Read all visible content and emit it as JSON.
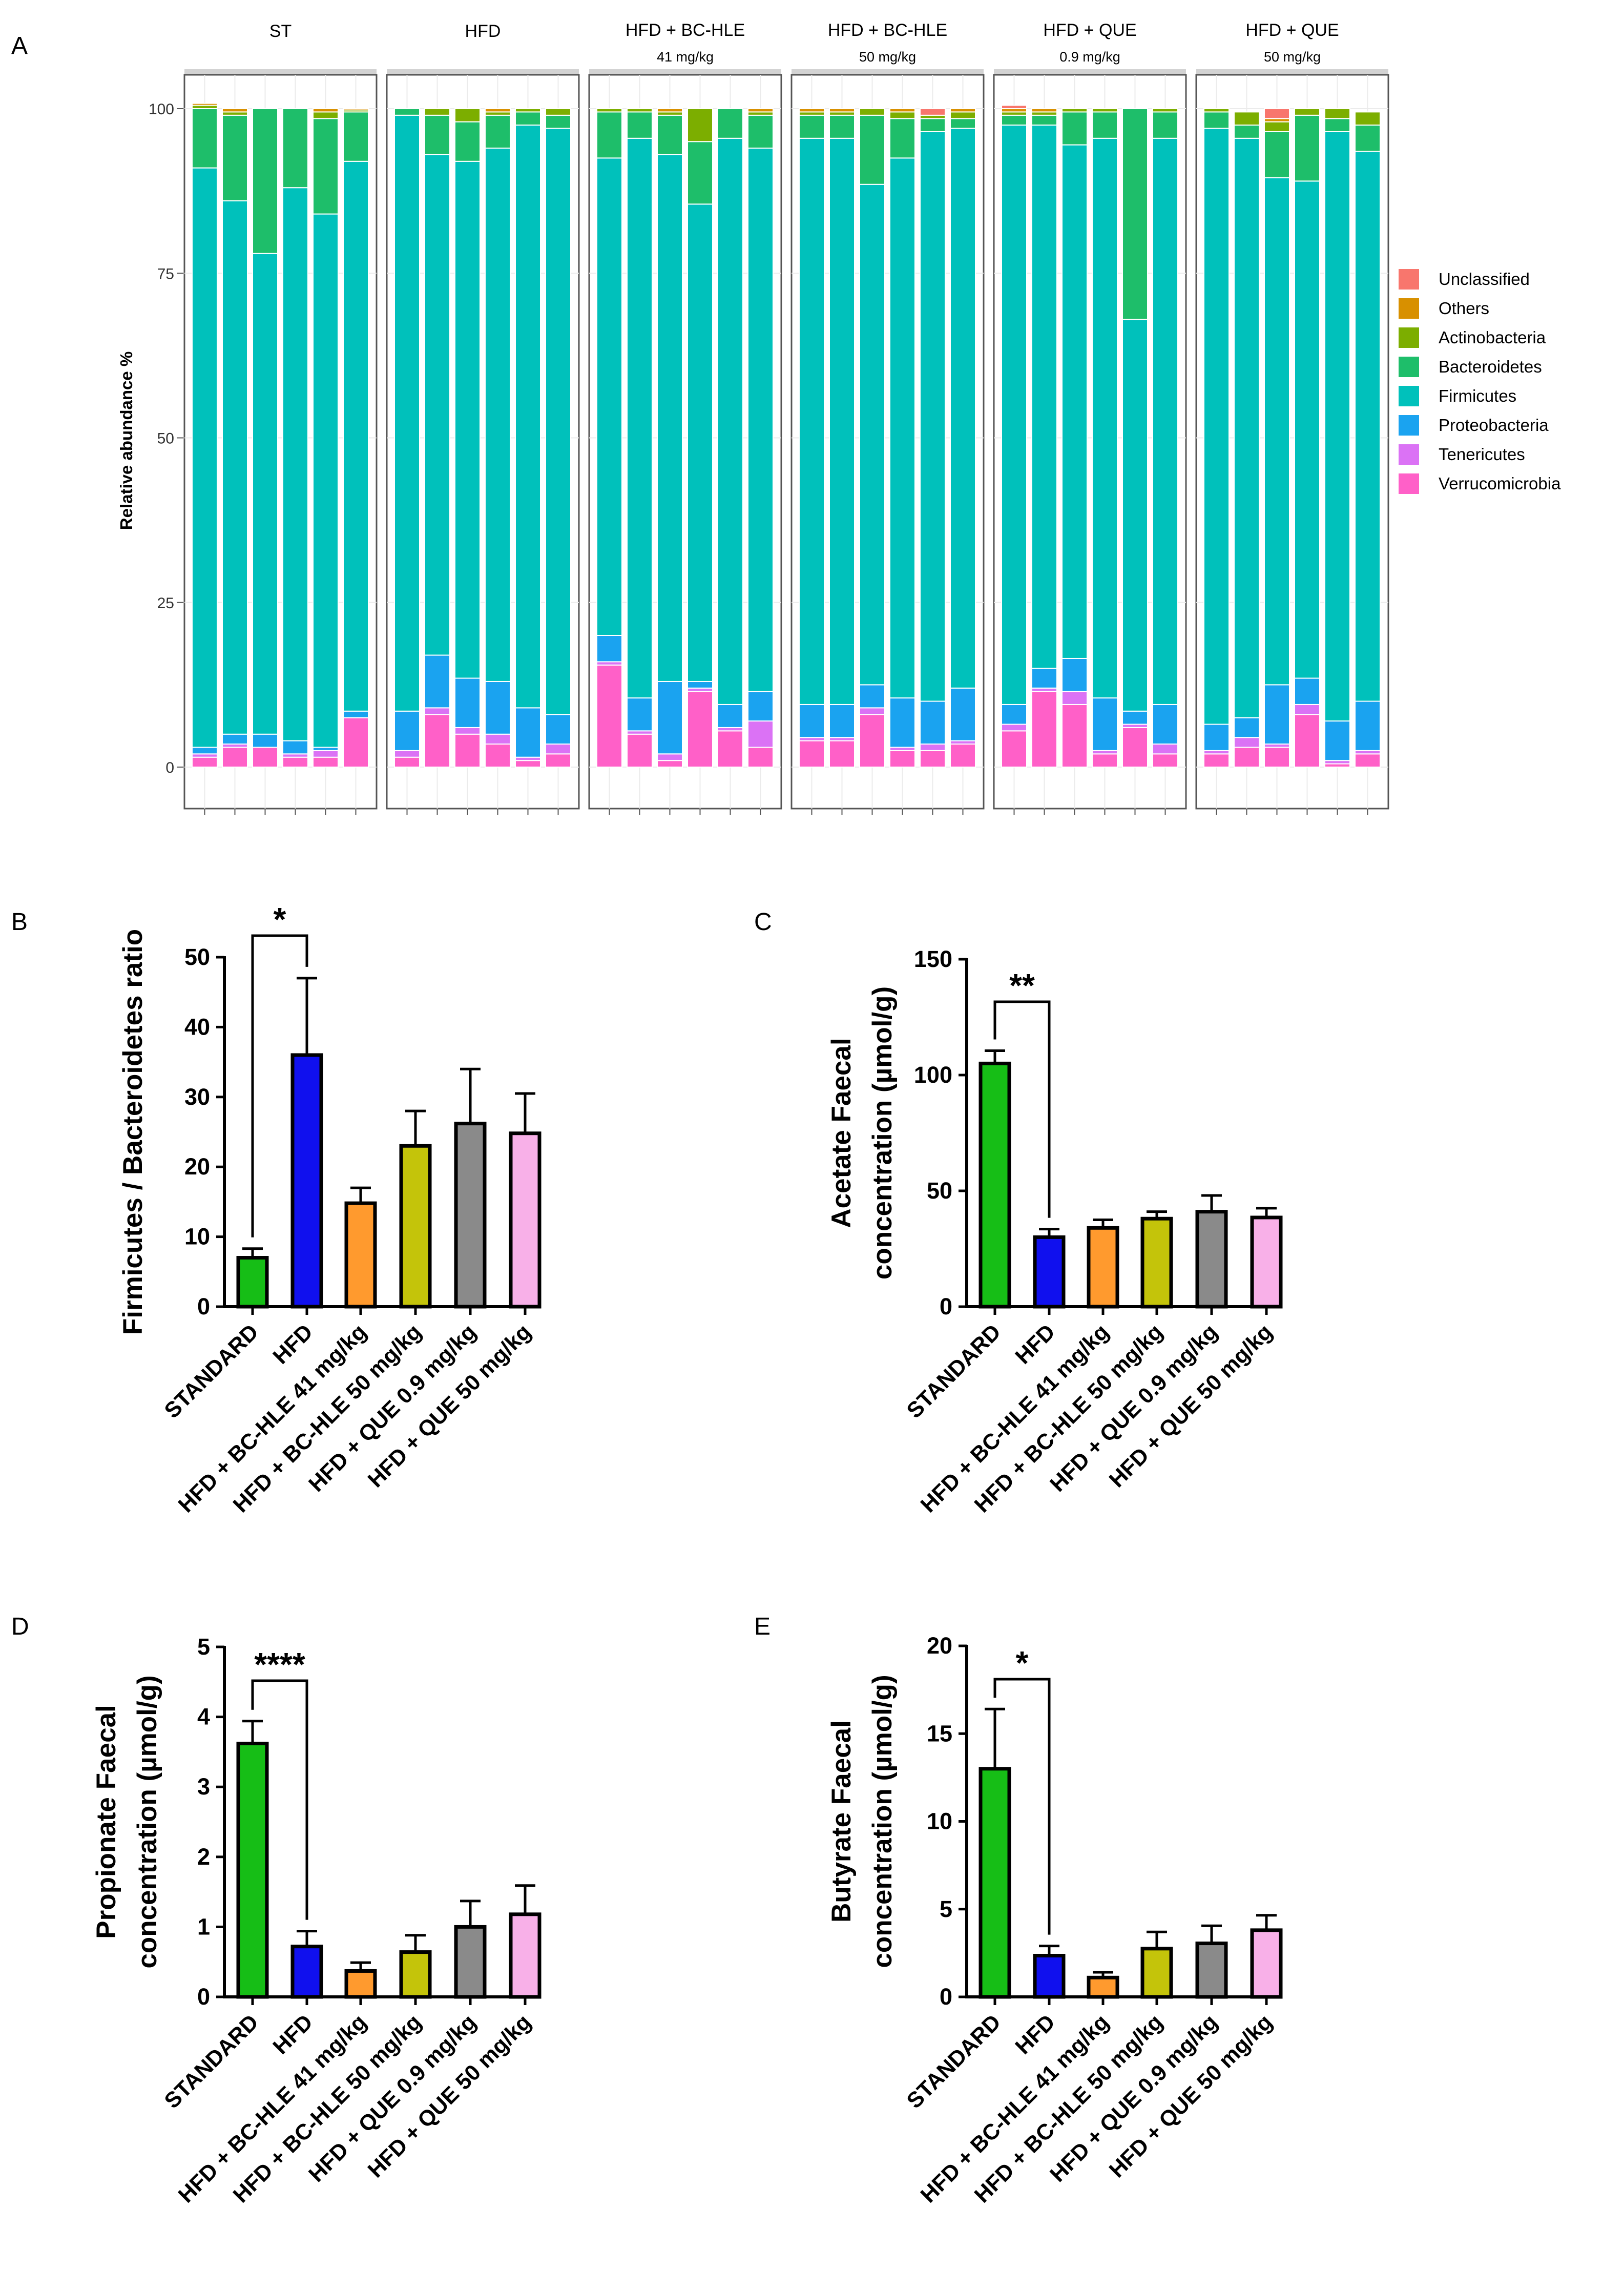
{
  "colors": {
    "Unclassified": "#F8766D",
    "Others": "#D89000",
    "Actinobacteria": "#7CAE00",
    "Bacteroidetes": "#1EBE6A",
    "Firmicutes": "#00C1BB",
    "Proteobacteria": "#1AA3F0",
    "Tenericutes": "#DB72F5",
    "Verrucomicrobia": "#FF60C8",
    "STANDARD": "#16BE16",
    "HFD": "#1010EE",
    "HFD + BC-HLE 41 mg/kg": "#FF9A2E",
    "HFD + BC-HLE 50 mg/kg": "#C4C40A",
    "HFD + QUE 0.9 mg/kg": "#8A8A8A",
    "HFD + QUE 50 mg/kg": "#F8B0E8"
  },
  "chart_data": [
    {
      "id": "A",
      "panel_label": "A",
      "type": "bar",
      "stacked": true,
      "ylabel": "Relative abundance %",
      "yticks": [
        0,
        25,
        50,
        75,
        100
      ],
      "ylim": [
        0,
        100
      ],
      "legend_position": "right",
      "phyla": [
        "Verrucomicrobia",
        "Tenericutes",
        "Proteobacteria",
        "Firmicutes",
        "Bacteroidetes",
        "Actinobacteria",
        "Others",
        "Unclassified"
      ],
      "legend_order": [
        "Unclassified",
        "Others",
        "Actinobacteria",
        "Bacteroidetes",
        "Firmicutes",
        "Proteobacteria",
        "Tenericutes",
        "Verrucomicrobia"
      ],
      "facets": [
        {
          "title": "ST",
          "subtitle": "",
          "samples": [
            [
              1.5,
              0.5,
              1,
              88,
              9,
              0.5,
              0.3,
              0
            ],
            [
              3,
              0.5,
              1.5,
              81,
              13,
              0.5,
              0.5,
              0
            ],
            [
              3,
              0,
              2,
              73,
              22,
              0,
              0,
              0
            ],
            [
              1.5,
              0.5,
              2,
              84,
              12,
              0,
              0,
              0
            ],
            [
              1.5,
              1,
              0.5,
              81,
              14.5,
              1,
              0.5,
              0
            ],
            [
              7.5,
              0,
              1,
              83.5,
              7.5,
              0.3,
              0.2,
              0
            ]
          ]
        },
        {
          "title": "HFD",
          "subtitle": "",
          "samples": [
            [
              1.5,
              1,
              6,
              90.5,
              1,
              0,
              0,
              0
            ],
            [
              8,
              1,
              8,
              76,
              6,
              1,
              0,
              0
            ],
            [
              5,
              1,
              7.5,
              78.5,
              6,
              2,
              0,
              0
            ],
            [
              3.5,
              1.5,
              8,
              81,
              5,
              0.5,
              0.5,
              0
            ],
            [
              1,
              0.5,
              7.5,
              88.5,
              2,
              0.5,
              0,
              0
            ],
            [
              2,
              1.5,
              4.5,
              89,
              2,
              1,
              0,
              0
            ]
          ]
        },
        {
          "title": "HFD + BC-HLE",
          "subtitle": "41 mg/kg",
          "samples": [
            [
              15.5,
              0.5,
              4,
              72.5,
              7,
              0.5,
              0,
              0
            ],
            [
              5,
              0.5,
              5,
              85,
              4,
              0.5,
              0,
              0
            ],
            [
              1,
              1,
              11,
              80,
              6,
              0.5,
              0.5,
              0
            ],
            [
              11.5,
              0.5,
              1,
              72.5,
              9.5,
              5,
              0,
              0
            ],
            [
              5.5,
              0.5,
              3.5,
              86,
              4.5,
              0,
              0,
              0
            ],
            [
              3,
              4,
              4.5,
              82.5,
              5,
              0.5,
              0.5,
              0
            ]
          ]
        },
        {
          "title": "HFD + BC-HLE",
          "subtitle": "50 mg/kg",
          "samples": [
            [
              4,
              0.5,
              5,
              86,
              3.5,
              0.5,
              0.5,
              0
            ],
            [
              4,
              0.5,
              5,
              86,
              3.5,
              0.5,
              0.5,
              0
            ],
            [
              8,
              1,
              3.5,
              76,
              10.5,
              1,
              0,
              0
            ],
            [
              2.5,
              0.5,
              7.5,
              82,
              6,
              1,
              0.5,
              0
            ],
            [
              2.5,
              1,
              6.5,
              86.5,
              2,
              0.5,
              0,
              1
            ],
            [
              3.5,
              0.5,
              8,
              85,
              1.5,
              1,
              0.5,
              0
            ]
          ]
        },
        {
          "title": "HFD + QUE",
          "subtitle": "0.9 mg/kg",
          "samples": [
            [
              5.5,
              1,
              3,
              88,
              1.5,
              0.5,
              0.5,
              0.5
            ],
            [
              11.5,
              0.5,
              3,
              82.5,
              1.5,
              0.5,
              0.5,
              0
            ],
            [
              9.5,
              2,
              5,
              78,
              5,
              0.5,
              0,
              0
            ],
            [
              2,
              0.5,
              8,
              85,
              4,
              0.5,
              0,
              0
            ],
            [
              6,
              0.5,
              2,
              59.5,
              32,
              0,
              0,
              0
            ],
            [
              2,
              1.5,
              6,
              86,
              4,
              0.5,
              0,
              0
            ]
          ]
        },
        {
          "title": "HFD + QUE",
          "subtitle": "50 mg/kg",
          "samples": [
            [
              2,
              0.5,
              4,
              90.5,
              2.5,
              0.5,
              0,
              0
            ],
            [
              3,
              1.5,
              3,
              88,
              2,
              2,
              0,
              0
            ],
            [
              3,
              0.5,
              9,
              77,
              7,
              1.5,
              0.5,
              1.5
            ],
            [
              8,
              1.5,
              4,
              75.5,
              10,
              1,
              0,
              0
            ],
            [
              0.5,
              0.5,
              6,
              89.5,
              2,
              1.5,
              0,
              0
            ],
            [
              2,
              0.5,
              7.5,
              83.5,
              4,
              2,
              0,
              0
            ]
          ]
        }
      ]
    },
    {
      "id": "B",
      "panel_label": "B",
      "type": "bar",
      "ylabel": "Firmicutes / Bacteroidetes ratio",
      "ylabel_lines": [
        "Firmicutes / Bacteroidetes ratio"
      ],
      "categories": [
        "STANDARD",
        "HFD",
        "HFD + BC-HLE 41 mg/kg",
        "HFD + BC-HLE 50 mg/kg",
        "HFD + QUE 0.9 mg/kg",
        "HFD + QUE 50 mg/kg"
      ],
      "values": [
        7,
        36,
        14.8,
        23,
        26.2,
        24.8
      ],
      "errors": [
        1.3,
        11,
        2.2,
        5,
        7.8,
        5.7
      ],
      "ylim": [
        0,
        50
      ],
      "yticks": [
        0,
        10,
        20,
        30,
        40,
        50
      ],
      "significance": {
        "from": 0,
        "to": 1,
        "label": "*"
      }
    },
    {
      "id": "C",
      "panel_label": "C",
      "type": "bar",
      "ylabel": "Acetate Faecal concentration (µmol/g)",
      "ylabel_lines": [
        "Acetate Faecal",
        "concentration (µmol/g)"
      ],
      "categories": [
        "STANDARD",
        "HFD",
        "HFD + BC-HLE 41 mg/kg",
        "HFD + BC-HLE 50 mg/kg",
        "HFD + QUE 0.9 mg/kg",
        "HFD + QUE 50 mg/kg"
      ],
      "values": [
        105,
        30,
        34,
        38,
        41,
        38.5
      ],
      "errors": [
        5.5,
        3.5,
        3.5,
        3,
        7,
        4
      ],
      "ylim": [
        0,
        150
      ],
      "yticks": [
        0,
        50,
        100,
        150
      ],
      "significance": {
        "from": 0,
        "to": 1,
        "label": "**"
      }
    },
    {
      "id": "D",
      "panel_label": "D",
      "type": "bar",
      "ylabel": "Propionate Faecal concentration (µmol/g)",
      "ylabel_lines": [
        "Propionate Faecal",
        "concentration (µmol/g)"
      ],
      "categories": [
        "STANDARD",
        "HFD",
        "HFD + BC-HLE 41 mg/kg",
        "HFD + BC-HLE 50 mg/kg",
        "HFD + QUE 0.9 mg/kg",
        "HFD + QUE 50 mg/kg"
      ],
      "values": [
        3.62,
        0.72,
        0.37,
        0.64,
        1,
        1.18
      ],
      "errors": [
        0.32,
        0.22,
        0.12,
        0.24,
        0.37,
        0.41
      ],
      "ylim": [
        0,
        5
      ],
      "yticks": [
        0,
        1,
        2,
        3,
        4,
        5
      ],
      "significance": {
        "from": 0,
        "to": 1,
        "label": "****"
      }
    },
    {
      "id": "E",
      "panel_label": "E",
      "type": "bar",
      "ylabel": "Butyrate Faecal concentration (µmol/g)",
      "ylabel_lines": [
        "Butyrate Faecal",
        "concentration (µmol/g)"
      ],
      "categories": [
        "STANDARD",
        "HFD",
        "HFD + BC-HLE 41 mg/kg",
        "HFD + BC-HLE 50 mg/kg",
        "HFD + QUE 0.9 mg/kg",
        "HFD + QUE 50 mg/kg"
      ],
      "values": [
        13,
        2.35,
        1.1,
        2.75,
        3.05,
        3.8
      ],
      "errors": [
        3.4,
        0.55,
        0.3,
        0.95,
        1,
        0.85
      ],
      "ylim": [
        0,
        20
      ],
      "yticks": [
        0,
        5,
        10,
        15,
        20
      ],
      "significance": {
        "from": 0,
        "to": 1,
        "label": "*"
      }
    }
  ]
}
